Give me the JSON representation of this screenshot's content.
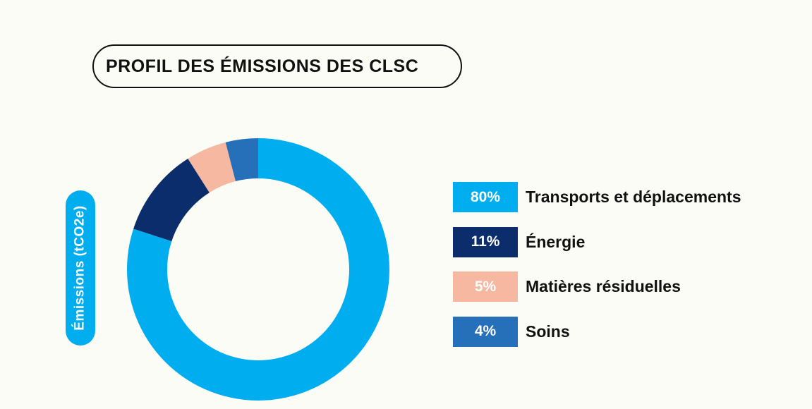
{
  "chart_data": {
    "type": "pie",
    "title": "PROFIL DES ÉMISSIONS DES CLSC",
    "ylabel": "Émissions (tCO2e)",
    "categories": [
      "Transports et déplacements",
      "Énergie",
      "Matières résiduelles",
      "Soins"
    ],
    "values": [
      80,
      11,
      5,
      4
    ],
    "value_labels": [
      "80%",
      "11%",
      "5%",
      "4%"
    ],
    "colors": [
      "#00aeef",
      "#0c2d6b",
      "#f6b8a0",
      "#2570b8"
    ],
    "donut": true,
    "legend_position": "right"
  }
}
